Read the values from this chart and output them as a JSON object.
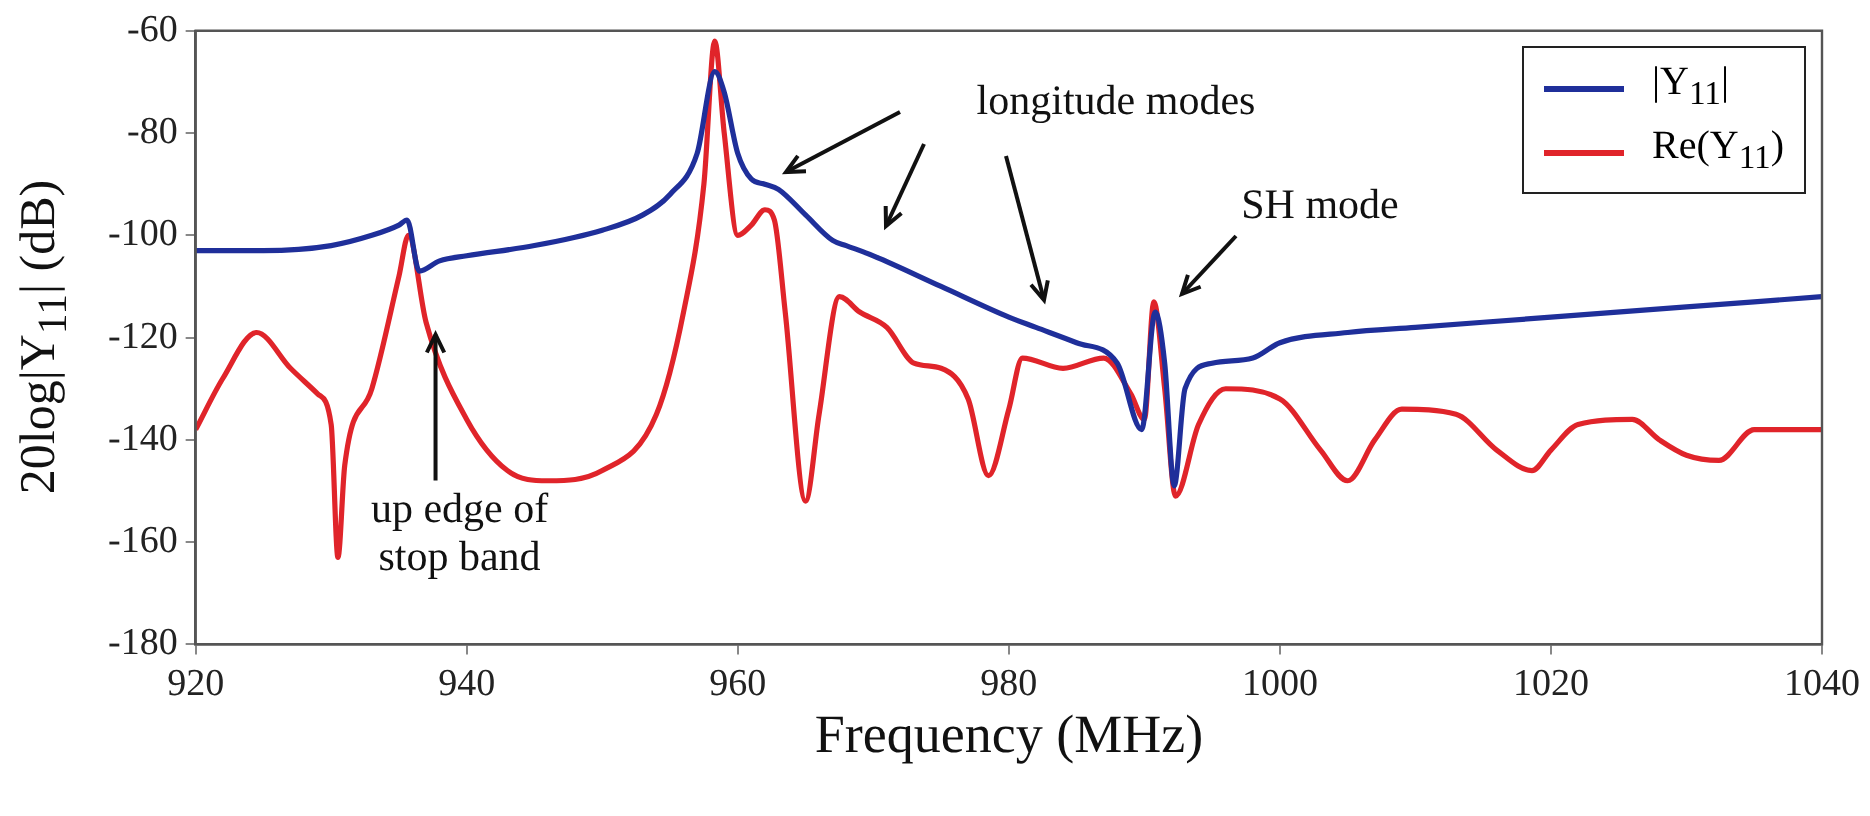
{
  "chart_data": {
    "type": "line",
    "xlabel": "Frequency (MHz)",
    "ylabel": "20log|Y$_{11}$| (dB)",
    "xlim": [
      920,
      1040
    ],
    "xticks": [
      920,
      940,
      960,
      980,
      1000,
      1020,
      1040
    ],
    "ylim": [
      -180,
      -60
    ],
    "yticks": [
      -180,
      -160,
      -140,
      -120,
      -100,
      -80,
      -60
    ],
    "grid": false,
    "legend": "top right",
    "marker": "none",
    "line_style": "solid",
    "annotations": [
      {
        "text": "up edge of stop band",
        "x": 937.7,
        "y": -119
      },
      "longitude modes",
      "SH mode"
    ],
    "series": [
      {
        "name": "|Y$_{11}$|",
        "color": "#1f2f9a",
        "x": [
          920,
          925,
          930,
          933,
          935,
          935.6,
          936.5,
          938,
          940,
          945,
          950,
          953,
          955,
          957,
          958.3,
          959,
          960,
          961,
          962,
          963,
          965,
          967,
          968,
          970,
          975,
          980,
          982,
          985,
          988,
          989.8,
          990.8,
          991.5,
          992.2,
          993,
          995,
          998,
          1000,
          1005,
          1010,
          1020,
          1030,
          1040
        ],
        "values": [
          -103,
          -103,
          -102,
          -100,
          -98,
          -97,
          -107,
          -105,
          -104,
          -102,
          -99,
          -96,
          -92,
          -84,
          -68,
          -72,
          -84,
          -89,
          -90,
          -91,
          -96,
          -101,
          -102,
          -104,
          -110,
          -116,
          -118,
          -121,
          -125,
          -138,
          -115,
          -125,
          -149,
          -130,
          -125,
          -124,
          -121,
          -119,
          -118,
          -116,
          -114,
          -112
        ]
      },
      {
        "name": "Re(Y$_{11}$)",
        "color": "#e0242a",
        "x": [
          920,
          922,
          924.5,
          927,
          929,
          930,
          930.5,
          931,
          933,
          935,
          935.7,
          937,
          940,
          943,
          946,
          950,
          954,
          956,
          957.5,
          958.3,
          959,
          960,
          961,
          962,
          962.7,
          963.5,
          965,
          966,
          967.5,
          969,
          971,
          973,
          975,
          977,
          978.5,
          980,
          981,
          984,
          987,
          989,
          990,
          990.7,
          991.5,
          992.3,
          994,
          996,
          1000,
          1003,
          1005,
          1007,
          1009,
          1013,
          1016,
          1018.6,
          1020,
          1022,
          1026,
          1028,
          1030,
          1032.4,
          1035,
          1040
        ],
        "values": [
          -138,
          -128,
          -119,
          -126,
          -131,
          -137,
          -163,
          -145,
          -130,
          -108,
          -100,
          -117,
          -136,
          -146,
          -148,
          -146,
          -135,
          -115,
          -90,
          -62,
          -80,
          -100,
          -98,
          -95,
          -97,
          -115,
          -152,
          -135,
          -112,
          -115,
          -118,
          -125,
          -126,
          -132,
          -147,
          -134,
          -124,
          -126,
          -124,
          -131,
          -136,
          -113,
          -130,
          -151,
          -137,
          -130,
          -132,
          -142,
          -148,
          -140,
          -134,
          -135,
          -142,
          -146,
          -142,
          -137,
          -136,
          -140,
          -143,
          -144,
          -138,
          -138
        ]
      }
    ]
  }
}
